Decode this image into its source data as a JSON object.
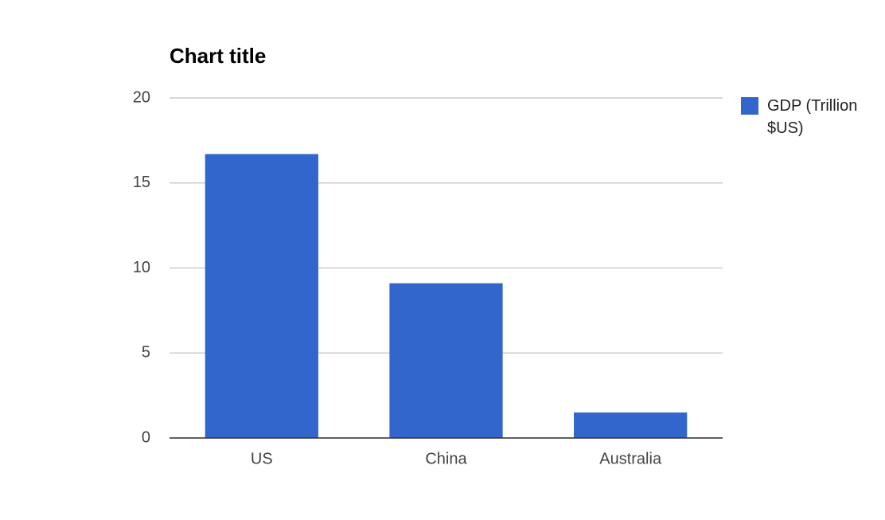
{
  "chart_data": {
    "type": "bar",
    "title": "Chart title",
    "categories": [
      "US",
      "China",
      "Australia"
    ],
    "series": [
      {
        "name": "GDP (Trillion $US)",
        "color": "#3366cc",
        "values": [
          16.7,
          9.1,
          1.5
        ]
      }
    ],
    "ylim": [
      0,
      20
    ],
    "yticks": [
      0,
      5,
      10,
      15,
      20
    ],
    "grid": true,
    "legend": "right"
  }
}
